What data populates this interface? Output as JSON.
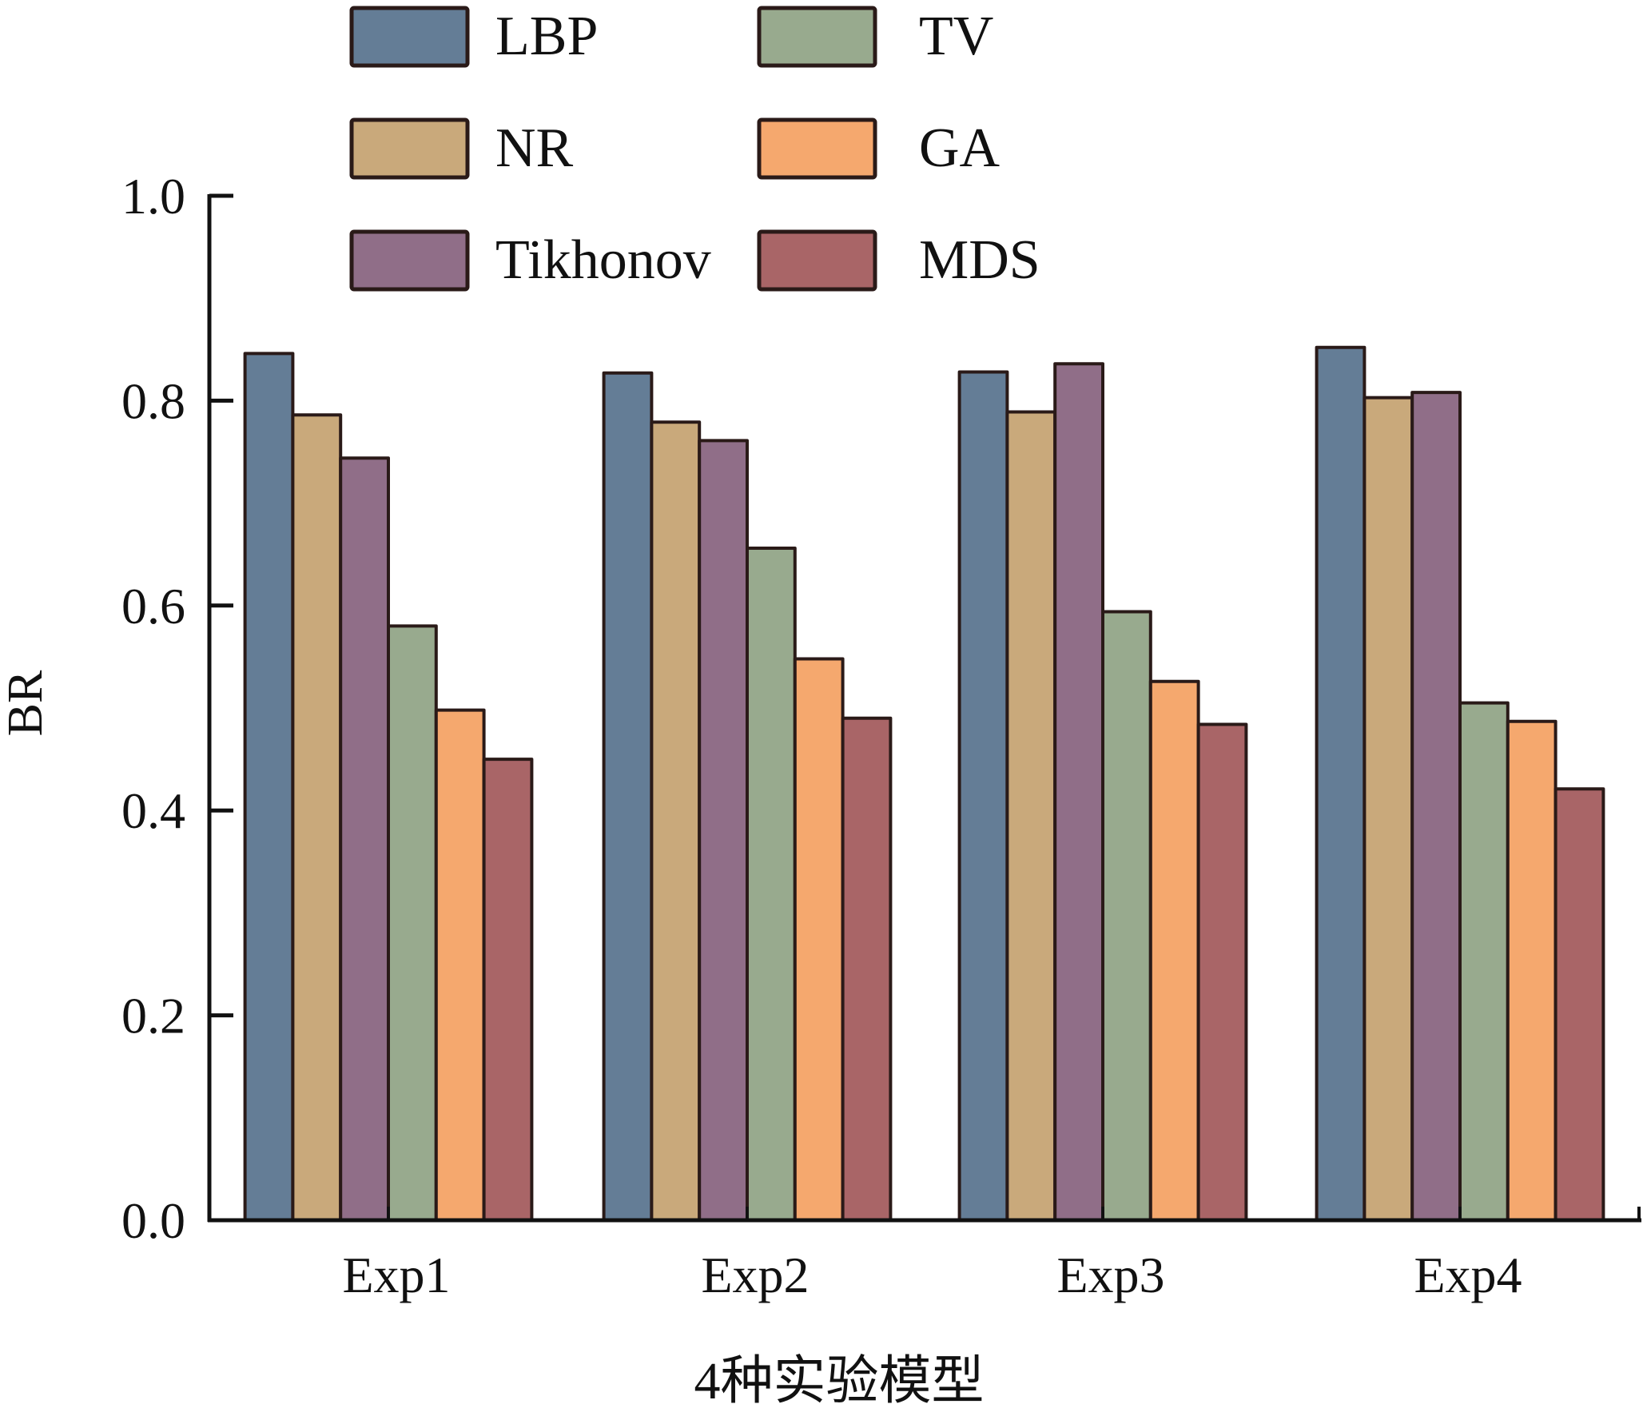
{
  "chart_data": {
    "type": "bar",
    "title": "",
    "xlabel": "4种实验模型",
    "ylabel": "BR",
    "categories": [
      "Exp1",
      "Exp2",
      "Exp3",
      "Exp4"
    ],
    "ylim": [
      0.0,
      1.0
    ],
    "yticks": [
      "0.0",
      "0.2",
      "0.4",
      "0.6",
      "0.8",
      "1.0"
    ],
    "grid": false,
    "legend_position": "top",
    "series": [
      {
        "name": "LBP",
        "color": "#647d96",
        "values": [
          0.846,
          0.827,
          0.828,
          0.852
        ]
      },
      {
        "name": "NR",
        "color": "#c9a97b",
        "values": [
          0.786,
          0.779,
          0.789,
          0.803
        ]
      },
      {
        "name": "Tikhonov",
        "color": "#906e88",
        "values": [
          0.744,
          0.761,
          0.836,
          0.808
        ]
      },
      {
        "name": "TV",
        "color": "#98aa8e",
        "values": [
          0.58,
          0.656,
          0.594,
          0.505
        ]
      },
      {
        "name": "GA",
        "color": "#f5a86e",
        "values": [
          0.498,
          0.548,
          0.526,
          0.487
        ]
      },
      {
        "name": "MDS",
        "color": "#a96567",
        "values": [
          0.45,
          0.49,
          0.484,
          0.421
        ]
      }
    ]
  }
}
